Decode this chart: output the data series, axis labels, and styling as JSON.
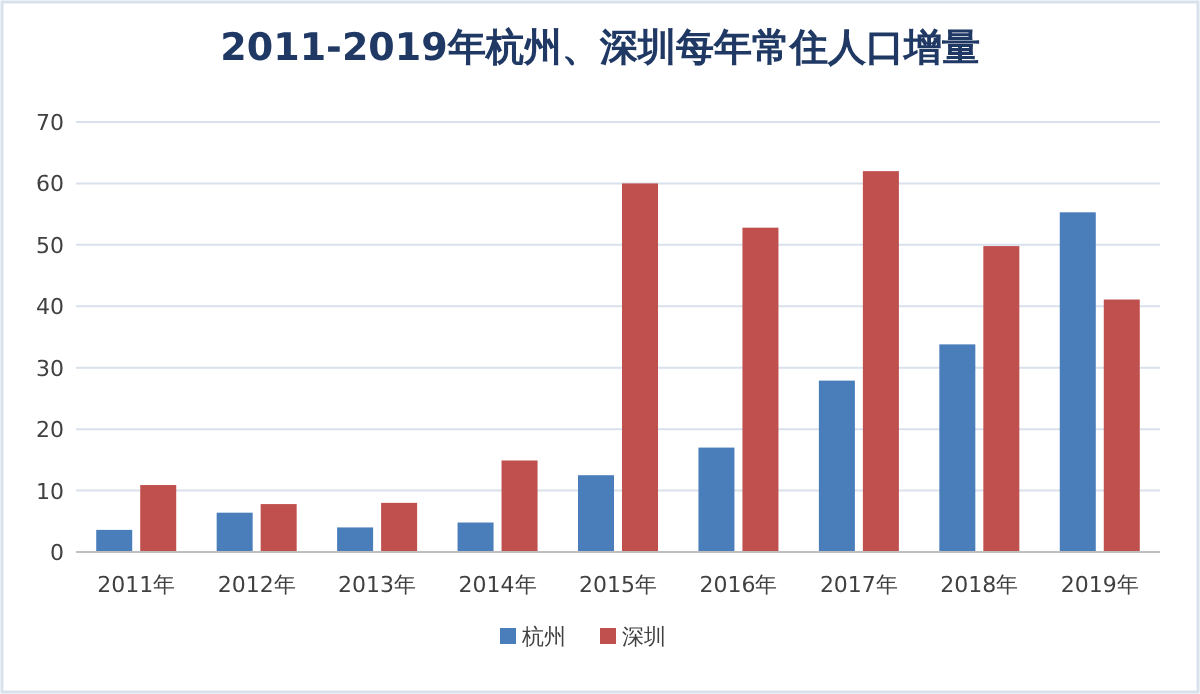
{
  "chart_data": {
    "type": "bar",
    "title": "2011-2019年杭州、深圳每年常住人口增量",
    "categories": [
      "2011年",
      "2012年",
      "2013年",
      "2014年",
      "2015年",
      "2016年",
      "2017年",
      "2018年",
      "2019年"
    ],
    "series": [
      {
        "name": "杭州",
        "color": "#4a7ebb",
        "values": [
          3.6,
          6.4,
          4.0,
          4.8,
          12.5,
          17,
          27.9,
          33.8,
          55.3
        ]
      },
      {
        "name": "深圳",
        "color": "#c0504d",
        "values": [
          10.9,
          7.8,
          8.0,
          14.9,
          60,
          52.8,
          62,
          49.8,
          41.1
        ]
      }
    ],
    "ylim": [
      0,
      70
    ],
    "yticks": [
      0,
      10,
      20,
      30,
      40,
      50,
      60,
      70
    ],
    "grid": "y",
    "legend": "bottom"
  }
}
